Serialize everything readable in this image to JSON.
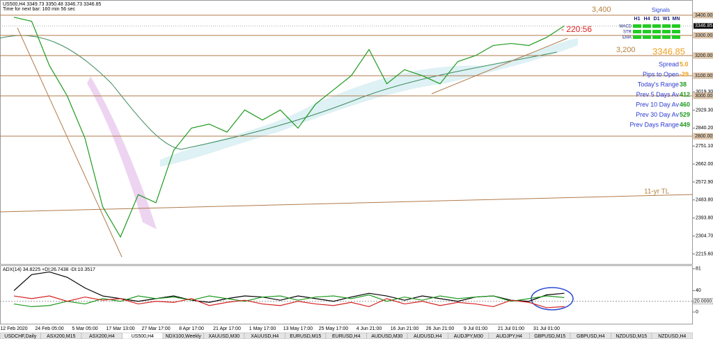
{
  "header": {
    "symbol_line": "US500,H4  3349.73 3350.48 3346.73 3346.85",
    "timer": "Time for next bar: 160 min 56 sec"
  },
  "chart_data": [
    {
      "type": "line",
      "title": "US500,H4",
      "categories": [
        "12 Feb 2020",
        null,
        "24 Feb 05:00",
        null,
        "5 Mar 05:00",
        null,
        "17 Mar 13:00",
        null,
        "27 Mar 17:00",
        null,
        "8 Apr 17:00",
        null,
        "21 Apr 17:00",
        null,
        "1 May 17:00",
        null,
        "13 May 17:00",
        null,
        "25 May 17:00",
        null,
        "4 Jun 21:00",
        null,
        "16 Jun 21:00",
        null,
        "26 Jun 21:00",
        null,
        "9 Jul 01:00",
        null,
        "21 Jul 01:00",
        null,
        "31 Jul 01:00",
        null
      ],
      "series": [
        {
          "name": "US500",
          "color": "#1f9a1f",
          "values": [
            3390,
            3370,
            3150,
            3000,
            2790,
            2450,
            2300,
            2510,
            2470,
            2730,
            2840,
            2860,
            2820,
            2930,
            2880,
            2930,
            2840,
            2960,
            3030,
            3100,
            3230,
            3060,
            3130,
            3100,
            3060,
            3170,
            3200,
            3250,
            3260,
            3250,
            3290,
            3347
          ]
        }
      ],
      "ylim": [
        2166,
        3448
      ],
      "yticks": [
        {
          "value": 3019.3,
          "label": "3019.30"
        },
        {
          "value": 2929.3,
          "label": "2929.30"
        },
        {
          "value": 2840.2,
          "label": "2840.20"
        },
        {
          "value": 2751.1,
          "label": "2751.10"
        },
        {
          "value": 2662,
          "label": "2662.00"
        },
        {
          "value": 2572.9,
          "label": "2572.90"
        },
        {
          "value": 2483.8,
          "label": "2483.80"
        },
        {
          "value": 2393.8,
          "label": "2393.80"
        },
        {
          "value": 2304.7,
          "label": "2304.70"
        },
        {
          "value": 2215.6,
          "label": "2215.60"
        }
      ],
      "levels": [
        {
          "value": 3400,
          "label": "3400.00"
        },
        {
          "value": 3300,
          "label": "3300.00"
        },
        {
          "value": 3200,
          "label": "3200.00"
        },
        {
          "value": 3100,
          "label": "3100.00"
        },
        {
          "value": 3000,
          "label": "3000.00"
        },
        {
          "value": 2800,
          "label": "2800.00"
        }
      ],
      "level_color": "#b07a4a",
      "last_price": {
        "value": 3346.85,
        "label": "3346.85"
      },
      "annotations": [
        "3,400",
        "3,200",
        "3346.85",
        "- 220:56",
        "11-yr TL"
      ]
    },
    {
      "type": "line",
      "title": "ADX(14) 34.8225 +DI:26.7438 -DI:10.3517",
      "series": [
        {
          "name": "ADX",
          "color": "#000000",
          "values": [
            40,
            70,
            75,
            65,
            45,
            30,
            25,
            20,
            25,
            30,
            22,
            18,
            25,
            30,
            28,
            22,
            30,
            25,
            20,
            28,
            35,
            30,
            22,
            30,
            25,
            20,
            28,
            30,
            22,
            20,
            32,
            35
          ]
        },
        {
          "name": "+DI",
          "color": "#1f9a1f",
          "values": [
            15,
            10,
            12,
            20,
            15,
            25,
            20,
            30,
            25,
            28,
            22,
            30,
            25,
            20,
            28,
            30,
            22,
            28,
            30,
            25,
            32,
            20,
            28,
            22,
            30,
            25,
            28,
            30,
            20,
            25,
            30,
            27
          ]
        },
        {
          "name": "-DI",
          "color": "#d42020",
          "values": [
            30,
            25,
            30,
            20,
            28,
            22,
            25,
            15,
            20,
            18,
            25,
            12,
            18,
            22,
            15,
            12,
            20,
            15,
            12,
            18,
            10,
            25,
            15,
            20,
            12,
            18,
            15,
            10,
            22,
            18,
            8,
            10
          ]
        }
      ],
      "ylim": [
        -22,
        86
      ],
      "yticks": [
        81,
        40,
        20,
        0
      ],
      "level": {
        "value": 20,
        "label": "20.0000"
      }
    }
  ],
  "panel": {
    "signals_title": "Signals",
    "timeframes": [
      "H1",
      "H4",
      "D1",
      "W1",
      "MN"
    ],
    "indicators": [
      "MACD",
      "STR",
      "EMA"
    ],
    "stats": [
      {
        "label": "Spread",
        "value": "5.0"
      },
      {
        "label": "Pips to Open",
        "value": "-29"
      },
      {
        "label": "Today's Range",
        "value": "38"
      },
      {
        "label": "Prev 5 Days Av",
        "value": "412"
      },
      {
        "label": "Prev 10 Day Av",
        "value": "460"
      },
      {
        "label": "Prev 30 Day Av",
        "value": "529"
      },
      {
        "label": "Prev Days Range",
        "value": "449"
      }
    ]
  },
  "tabs": [
    {
      "label": "USDCHF,Daily"
    },
    {
      "label": "ASX200,M15"
    },
    {
      "label": "ASX200,H4"
    },
    {
      "label": "US500,H4",
      "active": true
    },
    {
      "label": "NDX100,Weekly"
    },
    {
      "label": "XAUUSD,M30"
    },
    {
      "label": "XAUUSD,H4"
    },
    {
      "label": "EURUSD,M15"
    },
    {
      "label": "EURUSD,H4"
    },
    {
      "label": "AUDUSD,M30"
    },
    {
      "label": "AUDUSD,H4"
    },
    {
      "label": "AUDJPY,M30"
    },
    {
      "label": "AUDJPY,H4"
    },
    {
      "label": "GBPUSD,M15"
    },
    {
      "label": "GBPUSD,H4"
    },
    {
      "label": "NZDUSD,M15"
    },
    {
      "label": "NZDUSD,H4"
    }
  ]
}
